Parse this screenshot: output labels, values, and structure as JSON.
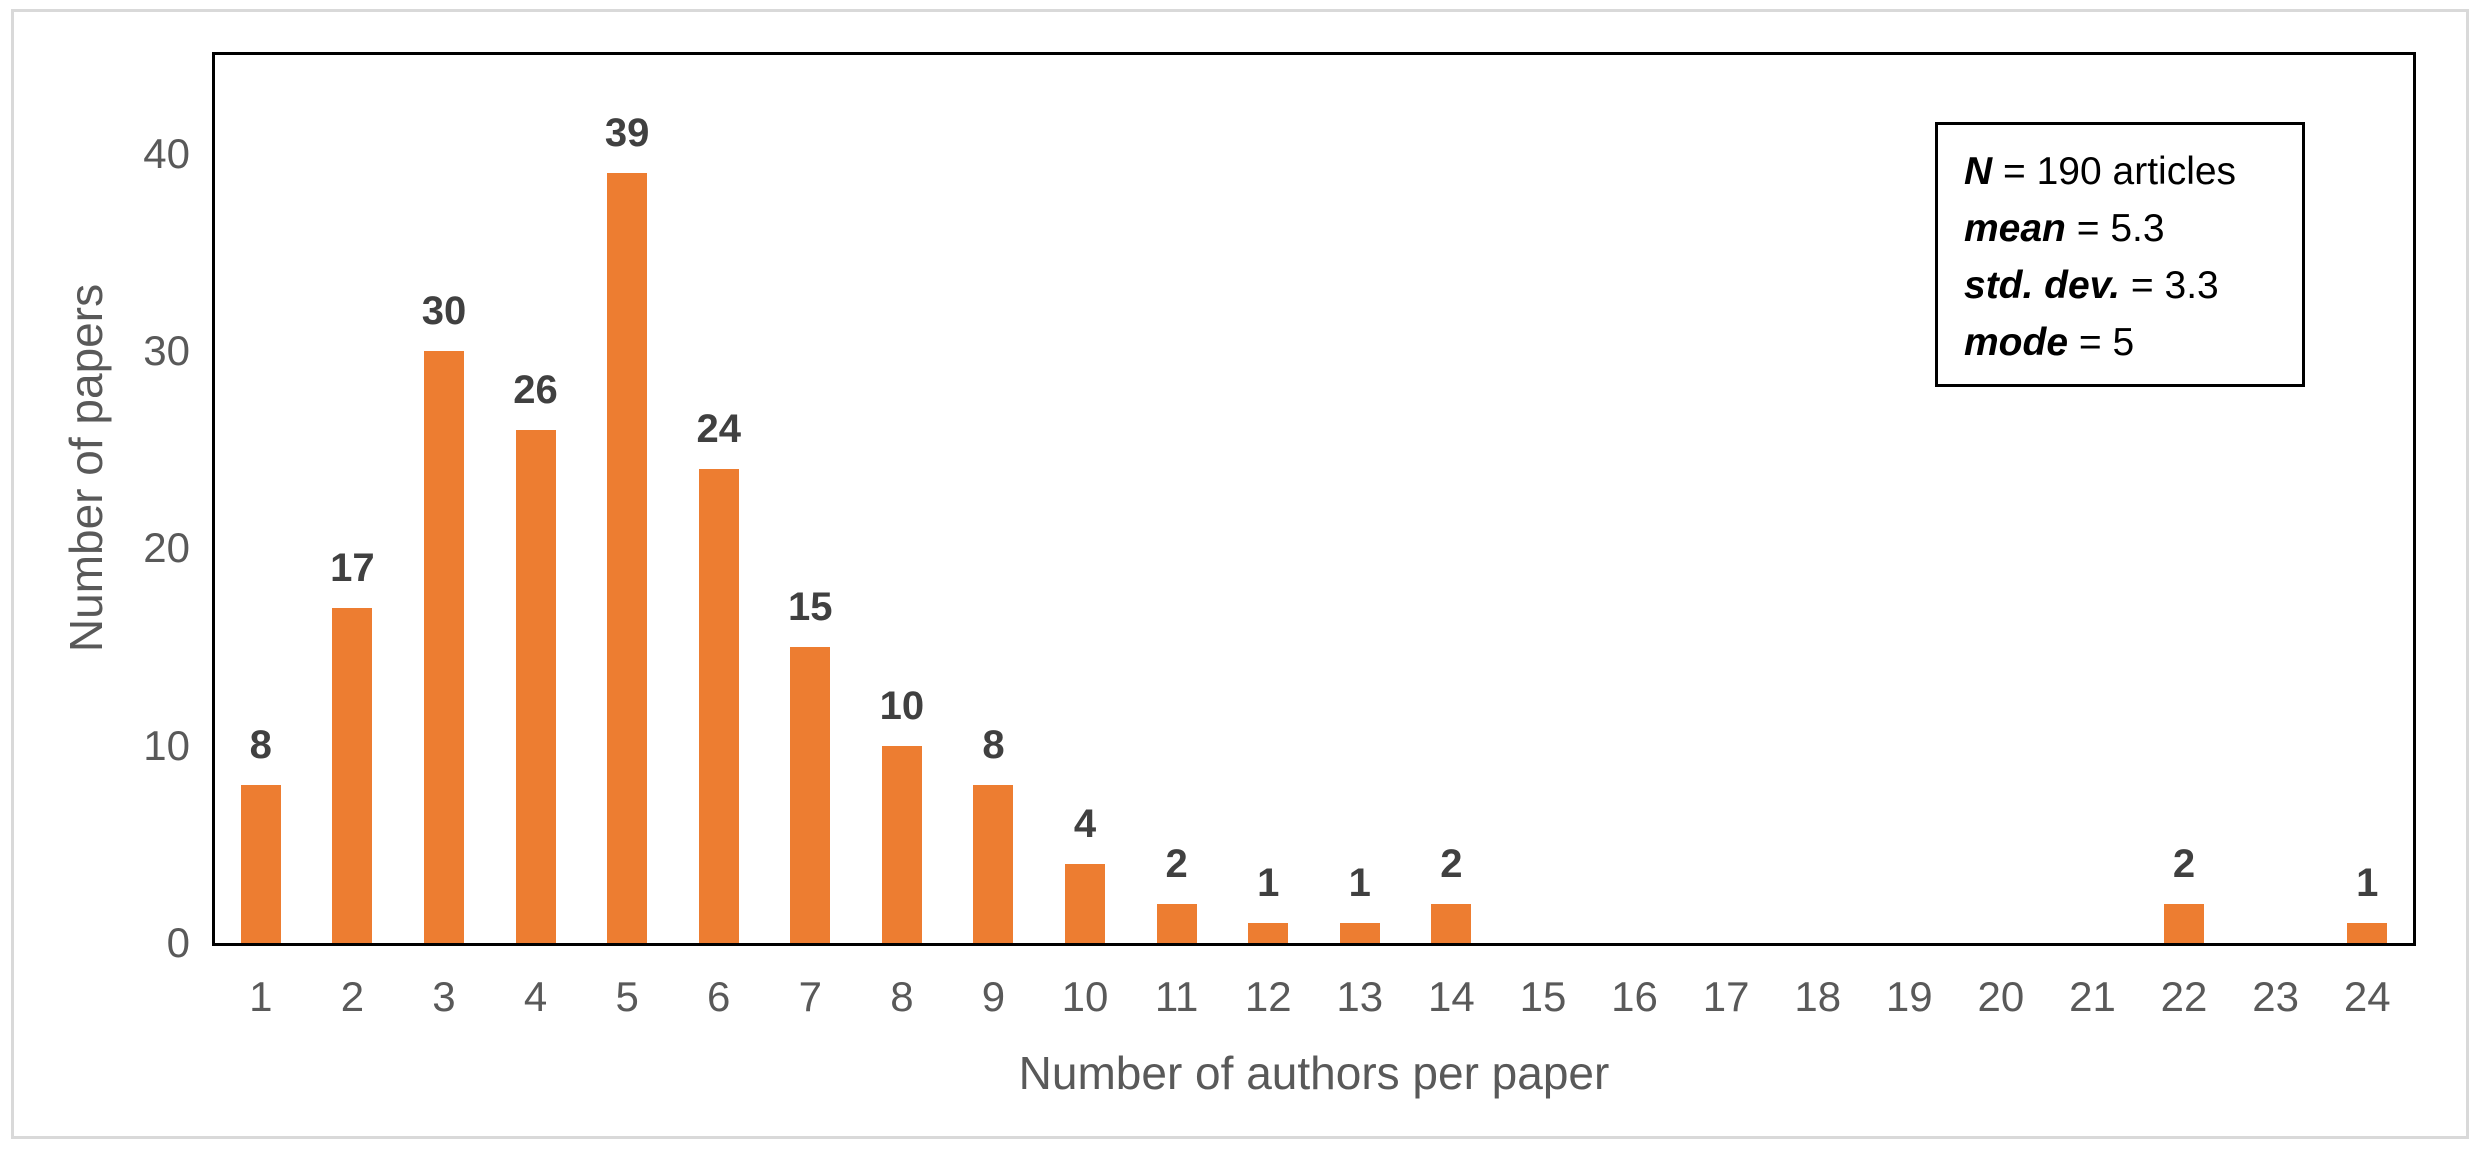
{
  "chart_data": {
    "type": "bar",
    "title": "",
    "xlabel": "Number of authors per paper",
    "ylabel": "Number of papers",
    "categories": [
      1,
      2,
      3,
      4,
      5,
      6,
      7,
      8,
      9,
      10,
      11,
      12,
      13,
      14,
      15,
      16,
      17,
      18,
      19,
      20,
      21,
      22,
      23,
      24
    ],
    "values": [
      8,
      17,
      30,
      26,
      39,
      24,
      15,
      10,
      8,
      4,
      2,
      1,
      1,
      2,
      0,
      0,
      0,
      0,
      0,
      0,
      0,
      2,
      0,
      1
    ],
    "ylim": [
      0,
      45
    ],
    "yticks": [
      0,
      10,
      20,
      30,
      40
    ],
    "grid": false,
    "legend_position": "none",
    "data_labels_shown_for_nonzero_only": true,
    "bar_color": "#ED7D31"
  },
  "stats_box": {
    "lines": [
      {
        "term": "N",
        "rest": " = 190 articles"
      },
      {
        "term": "mean",
        "rest": " = 5.3"
      },
      {
        "term": "std. dev.",
        "rest": " = 3.3"
      },
      {
        "term": "mode",
        "rest": " = 5"
      }
    ]
  },
  "colors": {
    "bar": "#ED7D31",
    "axis_text": "#595959",
    "data_label": "#404040",
    "plot_border": "#000000",
    "figure_border": "#D9D9D9",
    "background": "#FFFFFF"
  }
}
